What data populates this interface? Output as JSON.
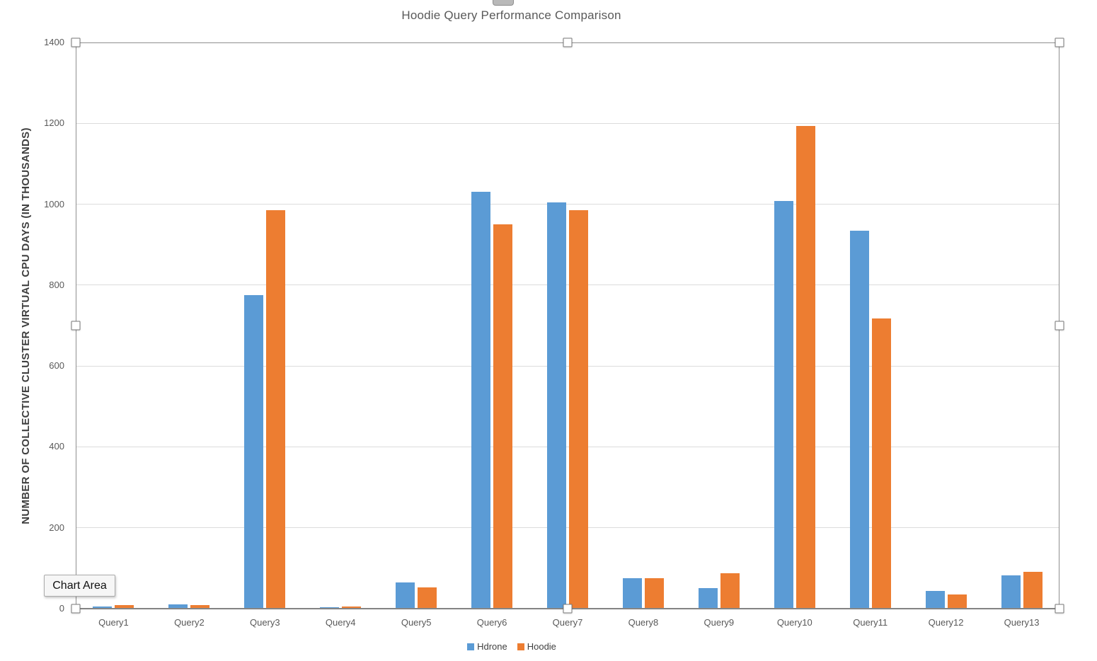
{
  "tooltip": {
    "label": "Chart Area"
  },
  "chart_data": {
    "type": "bar",
    "title": "Hoodie Query Performance Comparison",
    "xlabel": "",
    "ylabel": "NUMBER OF COLLECTIVE CLUSTER VIRTUAL CPU DAYS (IN THOUSANDS)",
    "categories": [
      "Query1",
      "Query2",
      "Query3",
      "Query4",
      "Query5",
      "Query6",
      "Query7",
      "Query8",
      "Query9",
      "Query10",
      "Query11",
      "Query12",
      "Query13"
    ],
    "series": [
      {
        "name": "Hdrone",
        "color": "#5B9BD5",
        "values": [
          5,
          10,
          775,
          4,
          65,
          1030,
          1005,
          75,
          50,
          1008,
          935,
          44,
          82
        ]
      },
      {
        "name": "Hoodie",
        "color": "#ED7D31",
        "values": [
          9,
          9,
          985,
          5,
          52,
          950,
          985,
          75,
          88,
          1193,
          718,
          35,
          91
        ]
      }
    ],
    "ylim": [
      0,
      1400
    ],
    "yticks": [
      0,
      200,
      400,
      600,
      800,
      1000,
      1200,
      1400
    ],
    "grid": true,
    "legend_position": "bottom"
  },
  "selection": {
    "frame_visible": true,
    "handle_count": 8
  },
  "colors": {
    "hdrone_bar": "#5B9BD5",
    "hoodie_bar": "#ED7D31",
    "gridline": "#DCDCDC",
    "axis_line": "#767676",
    "selection_frame": "#8F8F8F",
    "title_text": "#595959",
    "tick_text": "#595959",
    "axis_title_text": "#3F3F3F",
    "tooltip_background": "#F6F6F6"
  }
}
